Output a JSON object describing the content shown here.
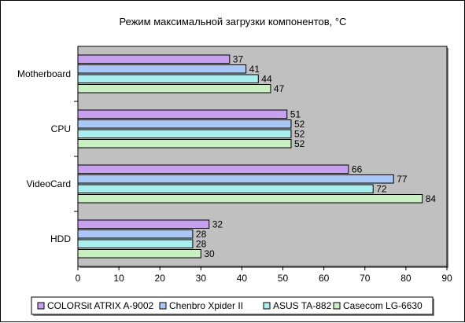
{
  "chart_data": {
    "type": "bar",
    "orientation": "horizontal",
    "title": "Режим максимальной загрузки компонентов, °С",
    "xlabel": "",
    "ylabel": "",
    "xlim": [
      0,
      90
    ],
    "x_ticks": [
      0,
      10,
      20,
      30,
      40,
      50,
      60,
      70,
      80,
      90
    ],
    "grid": false,
    "legend_position": "bottom",
    "categories": [
      "Motherboard",
      "CPU",
      "VideoCard",
      "HDD"
    ],
    "series": [
      {
        "name": "COLORSit ATRIX A-9002",
        "color": "#c8a0f0",
        "values": [
          37,
          51,
          66,
          32
        ]
      },
      {
        "name": "Chenbro Xpider II",
        "color": "#a8c8f8",
        "values": [
          41,
          52,
          77,
          28
        ]
      },
      {
        "name": "ASUS TA-882",
        "color": "#a8f0f0",
        "values": [
          44,
          52,
          72,
          28
        ]
      },
      {
        "name": "Casecom LG-6630",
        "color": "#c8f0c0",
        "values": [
          47,
          52,
          84,
          30
        ]
      }
    ],
    "plot_background": "#c0c0c0"
  }
}
